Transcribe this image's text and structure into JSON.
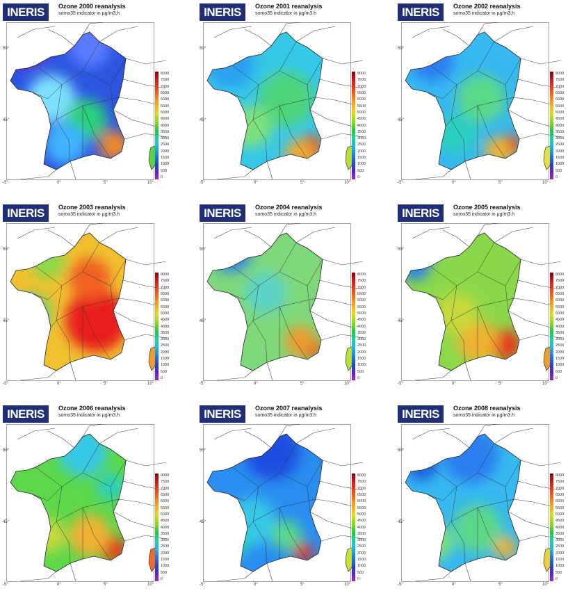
{
  "logo_text": "INERIS",
  "subtitle": "somo35 indicator in µg/m3.h",
  "lat_ticks": [
    "50°",
    "45°"
  ],
  "lon_ticks": [
    "-5°",
    "0°",
    "5°",
    "10°"
  ],
  "colorbar_ticks": [
    "8000",
    "7500",
    "7000",
    "6500",
    "6000",
    "5500",
    "5000",
    "4500",
    "4000",
    "3500",
    "3000",
    "2500",
    "2000",
    "1500",
    "1000",
    "500",
    "0"
  ],
  "panels": [
    {
      "title": "Ozone 2000 reanalysis",
      "base": "#2b55e0",
      "corsica": "#5cd23c",
      "spots": [
        [
          "#6a2bd8",
          30,
          40,
          28
        ],
        [
          "#7ee0ff",
          65,
          110,
          35
        ],
        [
          "#2bd07a",
          115,
          140,
          30
        ],
        [
          "#f08a2a",
          155,
          178,
          22
        ],
        [
          "#5a7cff",
          120,
          35,
          30
        ],
        [
          "#3fb4ff",
          85,
          175,
          30
        ]
      ]
    },
    {
      "title": "Ozone 2001 reanalysis",
      "base": "#36c8e8",
      "corsica": "#b8e03a",
      "spots": [
        [
          "#2aa0f0",
          40,
          60,
          35
        ],
        [
          "#4ed47a",
          120,
          110,
          40
        ],
        [
          "#e63a1e",
          155,
          180,
          18
        ],
        [
          "#f0a830",
          140,
          190,
          22
        ],
        [
          "#7ee07a",
          70,
          150,
          30
        ]
      ]
    },
    {
      "title": "Ozone 2002 reanalysis",
      "base": "#36b8f0",
      "corsica": "#e8e03a",
      "spots": [
        [
          "#2a7ef0",
          45,
          55,
          30
        ],
        [
          "#5cd88a",
          115,
          110,
          35
        ],
        [
          "#e23a1e",
          158,
          178,
          16
        ],
        [
          "#f0b030",
          140,
          185,
          20
        ],
        [
          "#2bd0c0",
          80,
          160,
          30
        ]
      ]
    },
    {
      "title": "Ozone 2003 reanalysis",
      "base": "#f0c030",
      "corsica": "#f09a2a",
      "spots": [
        [
          "#e81e1e",
          130,
          140,
          45
        ],
        [
          "#f06020",
          120,
          80,
          30
        ],
        [
          "#4ed47a",
          35,
          130,
          28
        ],
        [
          "#8ad84a",
          60,
          55,
          25
        ],
        [
          "#2a6ef0",
          85,
          10,
          10
        ]
      ]
    },
    {
      "title": "Ozone 2004 reanalysis",
      "base": "#7ed87a",
      "corsica": "#b8e03a",
      "spots": [
        [
          "#2a7ef0",
          40,
          40,
          30
        ],
        [
          "#1e50e0",
          80,
          10,
          12
        ],
        [
          "#e6301e",
          155,
          180,
          16
        ],
        [
          "#f09a2a",
          140,
          170,
          22
        ],
        [
          "#5cd2c8",
          90,
          100,
          30
        ]
      ]
    },
    {
      "title": "Ozone 2005 reanalysis",
      "base": "#8ad84a",
      "corsica": "#f09a2a",
      "spots": [
        [
          "#2a7ef0",
          20,
          60,
          22
        ],
        [
          "#1e50e0",
          88,
          10,
          12
        ],
        [
          "#e6301e",
          150,
          175,
          22
        ],
        [
          "#f0b030",
          110,
          170,
          30
        ],
        [
          "#c8d83a",
          80,
          130,
          30
        ]
      ]
    },
    {
      "title": "Ozone 2006 reanalysis",
      "base": "#5cd84a",
      "corsica": "#f06a2a",
      "spots": [
        [
          "#36c8e8",
          110,
          40,
          35
        ],
        [
          "#e6301e",
          155,
          180,
          18
        ],
        [
          "#f0b030",
          120,
          160,
          30
        ],
        [
          "#c8d83a",
          60,
          160,
          25
        ],
        [
          "#2bd0c0",
          150,
          90,
          20
        ]
      ]
    },
    {
      "title": "Ozone 2007 reanalysis",
      "base": "#2a8ef0",
      "corsica": "#c8e03a",
      "spots": [
        [
          "#1e4ee0",
          100,
          40,
          40
        ],
        [
          "#e6301e",
          145,
          185,
          14
        ],
        [
          "#36c8e8",
          70,
          140,
          35
        ],
        [
          "#5cd88a",
          120,
          160,
          22
        ],
        [
          "#2bd0c0",
          40,
          170,
          25
        ]
      ]
    },
    {
      "title": "Ozone 2008 reanalysis",
      "base": "#36b8f0",
      "corsica": "#f0d030",
      "spots": [
        [
          "#2a7ef0",
          100,
          45,
          40
        ],
        [
          "#1e60e0",
          30,
          60,
          22
        ],
        [
          "#5cd88a",
          110,
          150,
          35
        ],
        [
          "#f0b030",
          150,
          178,
          16
        ],
        [
          "#7ee07a",
          50,
          170,
          25
        ]
      ]
    }
  ]
}
